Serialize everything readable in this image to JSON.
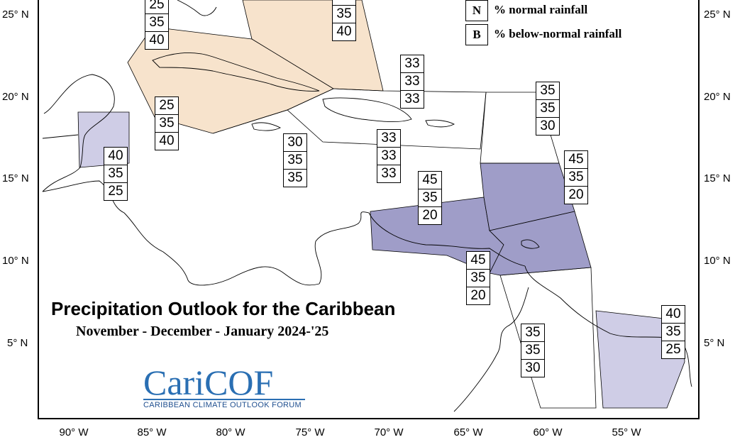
{
  "map": {
    "title": "Precipitation Outlook for the Caribbean",
    "subtitle": "November - December - January 2024-'25",
    "lat_labels": [
      "25° N",
      "20° N",
      "15° N",
      "10° N",
      "5° N"
    ],
    "lon_labels": [
      "90° W",
      "85° W",
      "80° W",
      "75° W",
      "70° W",
      "65° W",
      "60° W",
      "55° W"
    ],
    "legend": [
      {
        "key": "N",
        "label": "% normal rainfall"
      },
      {
        "key": "B",
        "label": "% below-normal rainfall"
      }
    ],
    "colors": {
      "below_dark": "#9f9dc8",
      "below_light": "#cfcde6",
      "above_light": "#f7e3cc"
    },
    "logo": {
      "name": "CariCOF",
      "tagline": "CARIBBEAN CLIMATE OUTLOOK FORUM"
    }
  },
  "probability_boxes": [
    {
      "id": "bahamas-west",
      "above": "25",
      "normal": "35",
      "below": "40"
    },
    {
      "id": "bahamas-east",
      "above": "",
      "normal": "35",
      "below": "40"
    },
    {
      "id": "cuba",
      "above": "25",
      "normal": "35",
      "below": "40"
    },
    {
      "id": "belize",
      "above": "40",
      "normal": "35",
      "below": "25"
    },
    {
      "id": "jamaica",
      "above": "30",
      "normal": "35",
      "below": "35"
    },
    {
      "id": "hispaniola-north",
      "above": "33",
      "normal": "33",
      "below": "33"
    },
    {
      "id": "hispaniola-south",
      "above": "33",
      "normal": "33",
      "below": "33"
    },
    {
      "id": "leeward",
      "above": "35",
      "normal": "35",
      "below": "30"
    },
    {
      "id": "windward",
      "above": "45",
      "normal": "35",
      "below": "20"
    },
    {
      "id": "abc-islands",
      "above": "45",
      "normal": "35",
      "below": "20"
    },
    {
      "id": "trinidad",
      "above": "45",
      "normal": "35",
      "below": "20"
    },
    {
      "id": "guyana",
      "above": "35",
      "normal": "35",
      "below": "30"
    },
    {
      "id": "suriname",
      "above": "40",
      "normal": "35",
      "below": "25"
    }
  ]
}
